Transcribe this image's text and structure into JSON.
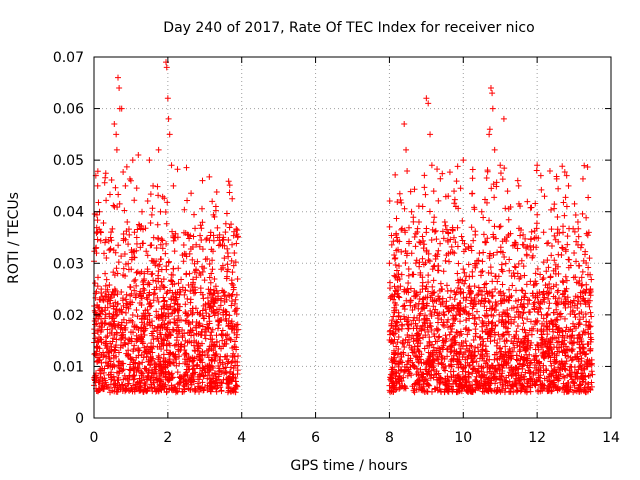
{
  "chart_data": {
    "type": "scatter",
    "title": "Day 240 of 2017, Rate Of TEC Index for receiver nico",
    "xlabel": "GPS time / hours",
    "ylabel": "ROTI / TECUs",
    "xlim": [
      0,
      14
    ],
    "ylim": [
      0,
      0.07
    ],
    "xticks": [
      0,
      2,
      4,
      6,
      8,
      10,
      12,
      14
    ],
    "yticks": [
      0,
      0.01,
      0.02,
      0.03,
      0.04,
      0.05,
      0.06,
      0.07
    ],
    "xtick_labels": [
      "0",
      "2",
      "4",
      "6",
      "8",
      "10",
      "12",
      "14"
    ],
    "ytick_labels": [
      "0",
      "0.01",
      "0.02",
      "0.03",
      "0.04",
      "0.05",
      "0.06",
      "0.07"
    ],
    "grid": true,
    "marker": "+",
    "color": "#ff0000",
    "series": [
      {
        "name": "ROTI",
        "segments": [
          {
            "x_start": 0.0,
            "x_end": 3.9,
            "typical_range": [
              0.005,
              0.025
            ],
            "max": 0.069
          },
          {
            "x_start": 8.0,
            "x_end": 13.5,
            "typical_range": [
              0.005,
              0.025
            ],
            "max": 0.064
          }
        ],
        "points": [
          [
            0.05,
            0.047
          ],
          [
            0.1,
            0.045
          ],
          [
            0.15,
            0.04
          ],
          [
            0.3,
            0.028
          ],
          [
            0.45,
            0.035
          ],
          [
            0.55,
            0.057
          ],
          [
            0.6,
            0.055
          ],
          [
            0.62,
            0.052
          ],
          [
            0.65,
            0.066
          ],
          [
            0.68,
            0.064
          ],
          [
            0.7,
            0.06
          ],
          [
            0.75,
            0.06
          ],
          [
            0.85,
            0.045
          ],
          [
            0.9,
            0.038
          ],
          [
            1.0,
            0.046
          ],
          [
            1.05,
            0.05
          ],
          [
            1.2,
            0.051
          ],
          [
            1.3,
            0.04
          ],
          [
            1.5,
            0.05
          ],
          [
            1.6,
            0.045
          ],
          [
            1.75,
            0.052
          ],
          [
            1.8,
            0.04
          ],
          [
            1.95,
            0.069
          ],
          [
            1.97,
            0.068
          ],
          [
            2.0,
            0.062
          ],
          [
            2.02,
            0.058
          ],
          [
            2.05,
            0.055
          ],
          [
            2.1,
            0.049
          ],
          [
            2.15,
            0.045
          ],
          [
            2.2,
            0.035
          ],
          [
            2.5,
            0.028
          ],
          [
            3.2,
            0.042
          ],
          [
            3.3,
            0.041
          ],
          [
            3.35,
            0.035
          ],
          [
            3.8,
            0.032
          ],
          [
            8.0,
            0.03
          ],
          [
            8.2,
            0.035
          ],
          [
            8.4,
            0.057
          ],
          [
            8.45,
            0.052
          ],
          [
            8.6,
            0.04
          ],
          [
            8.8,
            0.038
          ],
          [
            8.9,
            0.041
          ],
          [
            9.0,
            0.062
          ],
          [
            9.05,
            0.061
          ],
          [
            9.1,
            0.055
          ],
          [
            9.15,
            0.049
          ],
          [
            9.2,
            0.044
          ],
          [
            9.5,
            0.038
          ],
          [
            9.8,
            0.041
          ],
          [
            10.0,
            0.05
          ],
          [
            10.5,
            0.04
          ],
          [
            10.7,
            0.055
          ],
          [
            10.72,
            0.056
          ],
          [
            10.75,
            0.064
          ],
          [
            10.78,
            0.063
          ],
          [
            10.8,
            0.06
          ],
          [
            10.85,
            0.052
          ],
          [
            11.0,
            0.049
          ],
          [
            11.1,
            0.058
          ],
          [
            11.2,
            0.044
          ],
          [
            11.5,
            0.045
          ],
          [
            12.0,
            0.049
          ],
          [
            12.1,
            0.047
          ],
          [
            12.2,
            0.043
          ],
          [
            12.8,
            0.047
          ],
          [
            12.85,
            0.045
          ],
          [
            13.0,
            0.032
          ],
          [
            13.4,
            0.036
          ]
        ]
      }
    ]
  }
}
